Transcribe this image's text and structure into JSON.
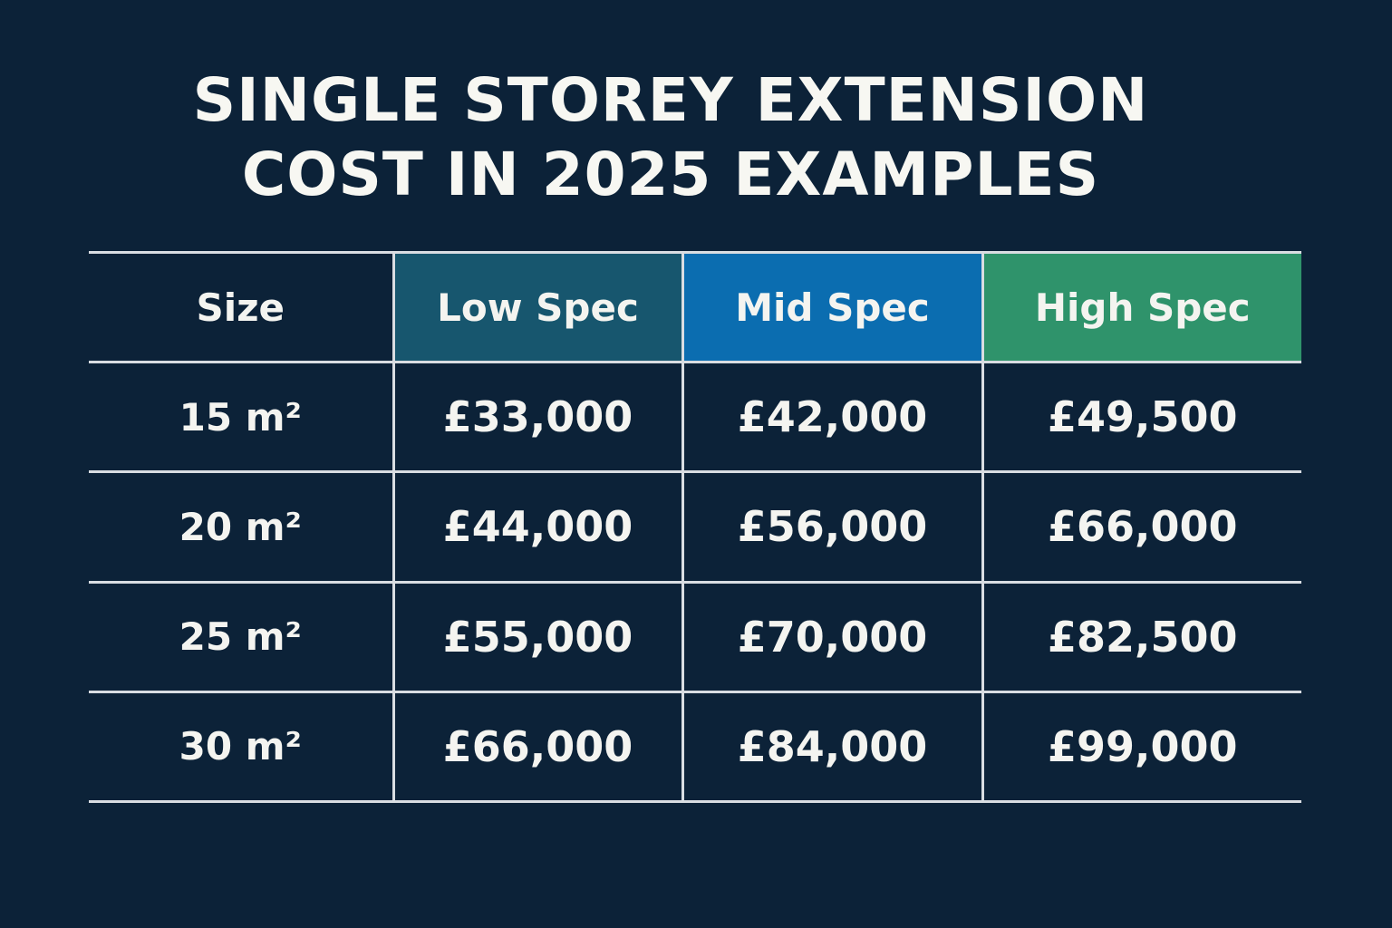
{
  "title": {
    "line1": "SINGLE STOREY EXTENSION",
    "line2": "COST IN 2025 EXAMPLES"
  },
  "colors": {
    "background": "#0c2238",
    "low_spec": "#17566e",
    "mid_spec": "#0b6db0",
    "high_spec": "#2f936b",
    "grid": "#d9dde2"
  },
  "chart_data": {
    "type": "table",
    "columns": [
      "Size",
      "Low Spec",
      "Mid Spec",
      "High Spec"
    ],
    "rows": [
      [
        "15 m²",
        "£33,000",
        "£42,000",
        "£49,500"
      ],
      [
        "20 m²",
        "£44,000",
        "£56,000",
        "£66,000"
      ],
      [
        "25 m²",
        "£55,000",
        "£70,000",
        "£82,500"
      ],
      [
        "30 m²",
        "£66,000",
        "£84,000",
        "£99,000"
      ]
    ]
  }
}
